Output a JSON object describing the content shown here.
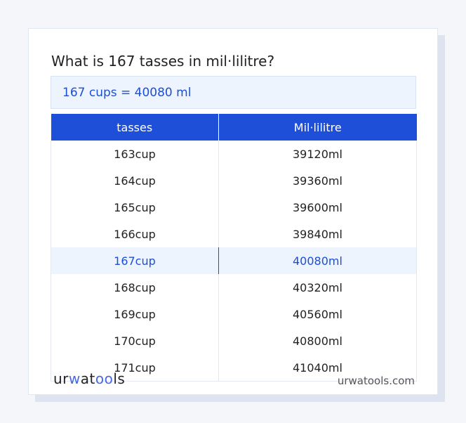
{
  "title": "What is 167 tasses in mil·lilitre?",
  "result": "167 cups = 40080 ml",
  "table": {
    "headers": [
      "tasses",
      "Mil·lilitre"
    ],
    "rows": [
      [
        "163cup",
        "39120ml"
      ],
      [
        "164cup",
        "39360ml"
      ],
      [
        "165cup",
        "39600ml"
      ],
      [
        "166cup",
        "39840ml"
      ],
      [
        "167cup",
        "40080ml"
      ],
      [
        "168cup",
        "40320ml"
      ],
      [
        "169cup",
        "40560ml"
      ],
      [
        "170cup",
        "40800ml"
      ],
      [
        "171cup",
        "41040ml"
      ]
    ],
    "highlighted_index": 4
  },
  "footer": {
    "logo": "urwatools",
    "site": "urwatools.com"
  },
  "colors": {
    "accent": "#1d4fd8",
    "highlight_bg": "#edf4fe"
  }
}
